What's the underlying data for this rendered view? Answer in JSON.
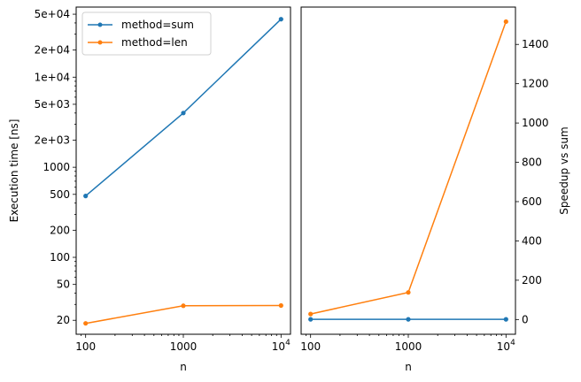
{
  "chart_data": [
    {
      "type": "line",
      "xlabel": "n",
      "ylabel": "Execution time [ns]",
      "x_scale": "log",
      "y_scale": "log",
      "xlim": [
        80,
        12500
      ],
      "ylim": [
        14,
        60000
      ],
      "x_ticks": [
        100,
        1000,
        10000
      ],
      "x_tick_labels": [
        "100",
        "1000",
        "10^4"
      ],
      "y_ticks": [
        20,
        50,
        100,
        200,
        500,
        1000,
        2000,
        5000,
        10000,
        20000,
        50000
      ],
      "y_tick_labels": [
        "20",
        "50",
        "100",
        "200",
        "500",
        "1000",
        "2e+03",
        "5e+03",
        "1e+04",
        "2e+04",
        "5e+04"
      ],
      "legend_position": "top-left",
      "series": [
        {
          "name": "method=sum",
          "color": "#1f77b4",
          "x": [
            100,
            1000,
            10000
          ],
          "y": [
            480,
            4000,
            44000
          ]
        },
        {
          "name": "method=len",
          "color": "#ff7f0e",
          "x": [
            100,
            1000,
            10000
          ],
          "y": [
            18.5,
            29,
            29.2
          ]
        }
      ]
    },
    {
      "type": "line",
      "xlabel": "n",
      "ylabel": "Speedup vs sum",
      "y_axis_position": "right",
      "x_scale": "log",
      "y_scale": "linear",
      "xlim": [
        80,
        12500
      ],
      "ylim": [
        -75,
        1590
      ],
      "x_ticks": [
        100,
        1000,
        10000
      ],
      "x_tick_labels": [
        "100",
        "1000",
        "10^4"
      ],
      "y_ticks": [
        0,
        200,
        400,
        600,
        800,
        1000,
        1200,
        1400
      ],
      "y_tick_labels": [
        "0",
        "200",
        "400",
        "600",
        "800",
        "1000",
        "1200",
        "1400"
      ],
      "series": [
        {
          "color": "#1f77b4",
          "x": [
            100,
            1000,
            10000
          ],
          "y": [
            1,
            1,
            1
          ]
        },
        {
          "color": "#ff7f0e",
          "x": [
            100,
            1000,
            10000
          ],
          "y": [
            28,
            138,
            1516
          ]
        }
      ]
    }
  ]
}
